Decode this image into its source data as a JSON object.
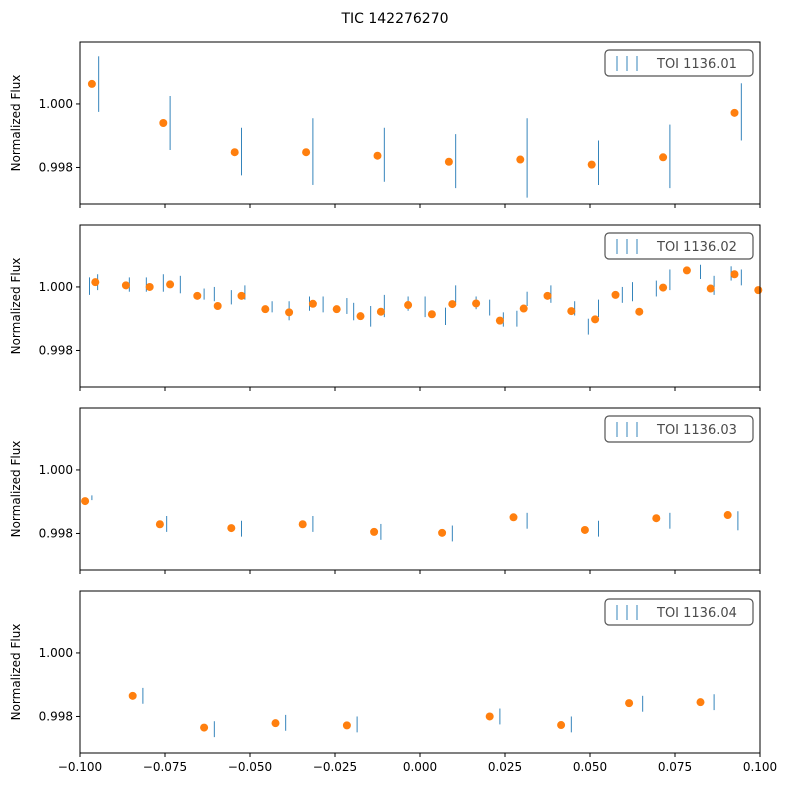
{
  "figure": {
    "title": "TIC 142276270"
  },
  "colors": {
    "observed": "#1f77b4",
    "binned": "#ff7f0e",
    "legend_border": "#555555"
  },
  "chart_data": {
    "type": "scatter",
    "xlim": [
      -0.1,
      0.1
    ],
    "ylim": [
      0.99685,
      1.00195
    ],
    "x_ticks": [
      -0.1,
      -0.075,
      -0.05,
      -0.025,
      0.0,
      0.025,
      0.05,
      0.075,
      0.1
    ],
    "x_tick_labels": [
      "−0.100",
      "−0.075",
      "−0.050",
      "−0.025",
      "0.000",
      "0.025",
      "0.050",
      "0.075",
      "0.100"
    ],
    "y_ticks": [
      0.998,
      1.0
    ],
    "y_tick_labels": [
      "0.998",
      "1.000"
    ],
    "ylabel": "Normalized Flux",
    "legend_position": "top-right",
    "panels": [
      {
        "legend": "TOI 1136.01",
        "observed": [
          {
            "x": -0.0945,
            "lo": 0.99975,
            "hi": 1.0015
          },
          {
            "x": -0.0735,
            "lo": 0.99855,
            "hi": 1.00025
          },
          {
            "x": -0.0525,
            "lo": 0.99775,
            "hi": 0.99925
          },
          {
            "x": -0.0315,
            "lo": 0.99745,
            "hi": 0.99955
          },
          {
            "x": -0.0105,
            "lo": 0.99755,
            "hi": 0.99925
          },
          {
            "x": 0.0105,
            "lo": 0.99735,
            "hi": 0.99905
          },
          {
            "x": 0.0315,
            "lo": 0.99705,
            "hi": 0.99955
          },
          {
            "x": 0.0525,
            "lo": 0.99745,
            "hi": 0.99885
          },
          {
            "x": 0.0735,
            "lo": 0.99735,
            "hi": 0.99935
          },
          {
            "x": 0.0945,
            "lo": 0.99885,
            "hi": 1.00065
          }
        ],
        "binned": [
          {
            "x": -0.0965,
            "y": 1.00063,
            "err": 0.0001
          },
          {
            "x": -0.0755,
            "y": 0.9994,
            "err": 0.0001
          },
          {
            "x": -0.0545,
            "y": 0.99848,
            "err": 0.0001
          },
          {
            "x": -0.0335,
            "y": 0.99848,
            "err": 0.0001
          },
          {
            "x": -0.0125,
            "y": 0.99837,
            "err": 0.0001
          },
          {
            "x": 0.0085,
            "y": 0.99818,
            "err": 0.0001
          },
          {
            "x": 0.0295,
            "y": 0.99825,
            "err": 0.0001
          },
          {
            "x": 0.0505,
            "y": 0.99809,
            "err": 0.0001
          },
          {
            "x": 0.0715,
            "y": 0.99832,
            "err": 0.0001
          },
          {
            "x": 0.0925,
            "y": 0.99972,
            "err": 0.0001
          }
        ]
      },
      {
        "legend": "TOI 1136.02",
        "observed": [
          {
            "x": -0.0972,
            "lo": 0.99975,
            "hi": 1.0003
          },
          {
            "x": -0.0948,
            "lo": 0.9999,
            "hi": 1.0004
          },
          {
            "x": -0.0855,
            "lo": 0.99985,
            "hi": 1.0003
          },
          {
            "x": -0.0805,
            "lo": 0.99985,
            "hi": 1.0003
          },
          {
            "x": -0.0755,
            "lo": 0.99985,
            "hi": 1.0004
          },
          {
            "x": -0.0705,
            "lo": 0.9998,
            "hi": 1.00035
          },
          {
            "x": -0.0635,
            "lo": 0.9996,
            "hi": 0.99995
          },
          {
            "x": -0.0605,
            "lo": 0.99955,
            "hi": 1.0
          },
          {
            "x": -0.0555,
            "lo": 0.99945,
            "hi": 0.9999
          },
          {
            "x": -0.0515,
            "lo": 0.9996,
            "hi": 1.00005
          },
          {
            "x": -0.0435,
            "lo": 0.9992,
            "hi": 0.99955
          },
          {
            "x": -0.0385,
            "lo": 0.99895,
            "hi": 0.99955
          },
          {
            "x": -0.0325,
            "lo": 0.99925,
            "hi": 0.9997
          },
          {
            "x": -0.0285,
            "lo": 0.9992,
            "hi": 0.9997
          },
          {
            "x": -0.0215,
            "lo": 0.99915,
            "hi": 0.99965
          },
          {
            "x": -0.0195,
            "lo": 0.99895,
            "hi": 0.9995
          },
          {
            "x": -0.0145,
            "lo": 0.99875,
            "hi": 0.9994
          },
          {
            "x": -0.0105,
            "lo": 0.99905,
            "hi": 0.99975
          },
          {
            "x": -0.0035,
            "lo": 0.99925,
            "hi": 0.9997
          },
          {
            "x": 0.0015,
            "lo": 0.99905,
            "hi": 0.9997
          },
          {
            "x": 0.0075,
            "lo": 0.9988,
            "hi": 0.99935
          },
          {
            "x": 0.0105,
            "lo": 0.9995,
            "hi": 1.00005
          },
          {
            "x": 0.0165,
            "lo": 0.9993,
            "hi": 0.9997
          },
          {
            "x": 0.0205,
            "lo": 0.9991,
            "hi": 0.9996
          },
          {
            "x": 0.0245,
            "lo": 0.99875,
            "hi": 0.9992
          },
          {
            "x": 0.0285,
            "lo": 0.99875,
            "hi": 0.99925
          },
          {
            "x": 0.0315,
            "lo": 0.9994,
            "hi": 0.99985
          },
          {
            "x": 0.0385,
            "lo": 0.9995,
            "hi": 1.00005
          },
          {
            "x": 0.0455,
            "lo": 0.9991,
            "hi": 0.99955
          },
          {
            "x": 0.0495,
            "lo": 0.9985,
            "hi": 0.999
          },
          {
            "x": 0.0525,
            "lo": 0.99905,
            "hi": 0.9996
          },
          {
            "x": 0.0595,
            "lo": 0.9995,
            "hi": 1.0
          },
          {
            "x": 0.0625,
            "lo": 0.99955,
            "hi": 1.00015
          },
          {
            "x": 0.0695,
            "lo": 0.9997,
            "hi": 1.0002
          },
          {
            "x": 0.0735,
            "lo": 0.9999,
            "hi": 1.00055
          },
          {
            "x": 0.0825,
            "lo": 1.00025,
            "hi": 1.0007
          },
          {
            "x": 0.0865,
            "lo": 0.99975,
            "hi": 1.00035
          },
          {
            "x": 0.0915,
            "lo": 1.0002,
            "hi": 1.00065
          },
          {
            "x": 0.0945,
            "lo": 1.00005,
            "hi": 1.00055
          }
        ],
        "binned": [
          {
            "x": -0.0955,
            "y": 1.00015,
            "err": 0.0001
          },
          {
            "x": -0.0865,
            "y": 1.00005,
            "err": 0.0001
          },
          {
            "x": -0.0795,
            "y": 1.0,
            "err": 0.0001
          },
          {
            "x": -0.0735,
            "y": 1.00008,
            "err": 0.0001
          },
          {
            "x": -0.0655,
            "y": 0.99972,
            "err": 0.0001
          },
          {
            "x": -0.0595,
            "y": 0.9994,
            "err": 0.0001
          },
          {
            "x": -0.0525,
            "y": 0.99972,
            "err": 0.0001
          },
          {
            "x": -0.0455,
            "y": 0.9993,
            "err": 0.0001
          },
          {
            "x": -0.0385,
            "y": 0.9992,
            "err": 0.0001
          },
          {
            "x": -0.0315,
            "y": 0.99947,
            "err": 0.0001
          },
          {
            "x": -0.0245,
            "y": 0.9993,
            "err": 0.0001
          },
          {
            "x": -0.0175,
            "y": 0.99908,
            "err": 0.0001
          },
          {
            "x": -0.0115,
            "y": 0.99922,
            "err": 0.0001
          },
          {
            "x": -0.0035,
            "y": 0.99943,
            "err": 0.0001
          },
          {
            "x": 0.0035,
            "y": 0.99914,
            "err": 0.0001
          },
          {
            "x": 0.0095,
            "y": 0.99946,
            "err": 0.0001
          },
          {
            "x": 0.0165,
            "y": 0.99948,
            "err": 0.0001
          },
          {
            "x": 0.0235,
            "y": 0.99894,
            "err": 0.0001
          },
          {
            "x": 0.0305,
            "y": 0.99932,
            "err": 0.0001
          },
          {
            "x": 0.0375,
            "y": 0.99972,
            "err": 0.0001
          },
          {
            "x": 0.0445,
            "y": 0.99924,
            "err": 0.0001
          },
          {
            "x": 0.0515,
            "y": 0.99898,
            "err": 0.0001
          },
          {
            "x": 0.0575,
            "y": 0.99975,
            "err": 0.0001
          },
          {
            "x": 0.0645,
            "y": 0.99922,
            "err": 0.0001
          },
          {
            "x": 0.0715,
            "y": 0.99998,
            "err": 0.0001
          },
          {
            "x": 0.0785,
            "y": 1.00052,
            "err": 0.0001
          },
          {
            "x": 0.0855,
            "y": 0.99995,
            "err": 0.0001
          },
          {
            "x": 0.0925,
            "y": 1.0004,
            "err": 0.0001
          },
          {
            "x": 0.0995,
            "y": 0.9999,
            "err": 0.0001
          }
        ]
      },
      {
        "legend": "TOI 1136.03",
        "observed": [
          {
            "x": -0.0965,
            "lo": 0.99905,
            "hi": 0.9992
          },
          {
            "x": -0.0745,
            "lo": 0.99805,
            "hi": 0.99855
          },
          {
            "x": -0.0525,
            "lo": 0.9979,
            "hi": 0.9984
          },
          {
            "x": -0.0315,
            "lo": 0.99805,
            "hi": 0.99855
          },
          {
            "x": -0.0115,
            "lo": 0.9978,
            "hi": 0.9983
          },
          {
            "x": 0.0095,
            "lo": 0.99775,
            "hi": 0.99825
          },
          {
            "x": 0.0315,
            "lo": 0.99815,
            "hi": 0.99865
          },
          {
            "x": 0.0525,
            "lo": 0.9979,
            "hi": 0.9984
          },
          {
            "x": 0.0735,
            "lo": 0.99815,
            "hi": 0.99865
          },
          {
            "x": 0.0935,
            "lo": 0.9981,
            "hi": 0.9987
          }
        ],
        "binned": [
          {
            "x": -0.0985,
            "y": 0.99902,
            "err": 0.0001
          },
          {
            "x": -0.0765,
            "y": 0.99829,
            "err": 0.0001
          },
          {
            "x": -0.0555,
            "y": 0.99817,
            "err": 0.0001
          },
          {
            "x": -0.0345,
            "y": 0.99829,
            "err": 0.0001
          },
          {
            "x": -0.0135,
            "y": 0.99805,
            "err": 0.0001
          },
          {
            "x": 0.0065,
            "y": 0.99802,
            "err": 0.0001
          },
          {
            "x": 0.0275,
            "y": 0.99851,
            "err": 0.0001
          },
          {
            "x": 0.0485,
            "y": 0.99811,
            "err": 0.0001
          },
          {
            "x": 0.0695,
            "y": 0.99848,
            "err": 0.0001
          },
          {
            "x": 0.0905,
            "y": 0.99858,
            "err": 0.0001
          }
        ]
      },
      {
        "legend": "TOI 1136.04",
        "observed": [
          {
            "x": -0.0815,
            "lo": 0.9984,
            "hi": 0.9989
          },
          {
            "x": -0.0605,
            "lo": 0.99735,
            "hi": 0.99785
          },
          {
            "x": -0.0395,
            "lo": 0.99755,
            "hi": 0.99805
          },
          {
            "x": -0.0185,
            "lo": 0.9975,
            "hi": 0.998
          },
          {
            "x": 0.0235,
            "lo": 0.99775,
            "hi": 0.99825
          },
          {
            "x": 0.0445,
            "lo": 0.9975,
            "hi": 0.998
          },
          {
            "x": 0.0655,
            "lo": 0.99815,
            "hi": 0.99865
          },
          {
            "x": 0.0865,
            "lo": 0.9982,
            "hi": 0.9987
          }
        ],
        "binned": [
          {
            "x": -0.0845,
            "y": 0.99865,
            "err": 0.0001
          },
          {
            "x": -0.0635,
            "y": 0.99765,
            "err": 0.0001
          },
          {
            "x": -0.0425,
            "y": 0.99779,
            "err": 0.0001
          },
          {
            "x": -0.0215,
            "y": 0.99772,
            "err": 0.0001
          },
          {
            "x": 0.0205,
            "y": 0.998,
            "err": 0.0001
          },
          {
            "x": 0.0415,
            "y": 0.99773,
            "err": 0.0001
          },
          {
            "x": 0.0615,
            "y": 0.99842,
            "err": 0.0001
          },
          {
            "x": 0.0825,
            "y": 0.99845,
            "err": 0.0001
          }
        ]
      }
    ]
  }
}
